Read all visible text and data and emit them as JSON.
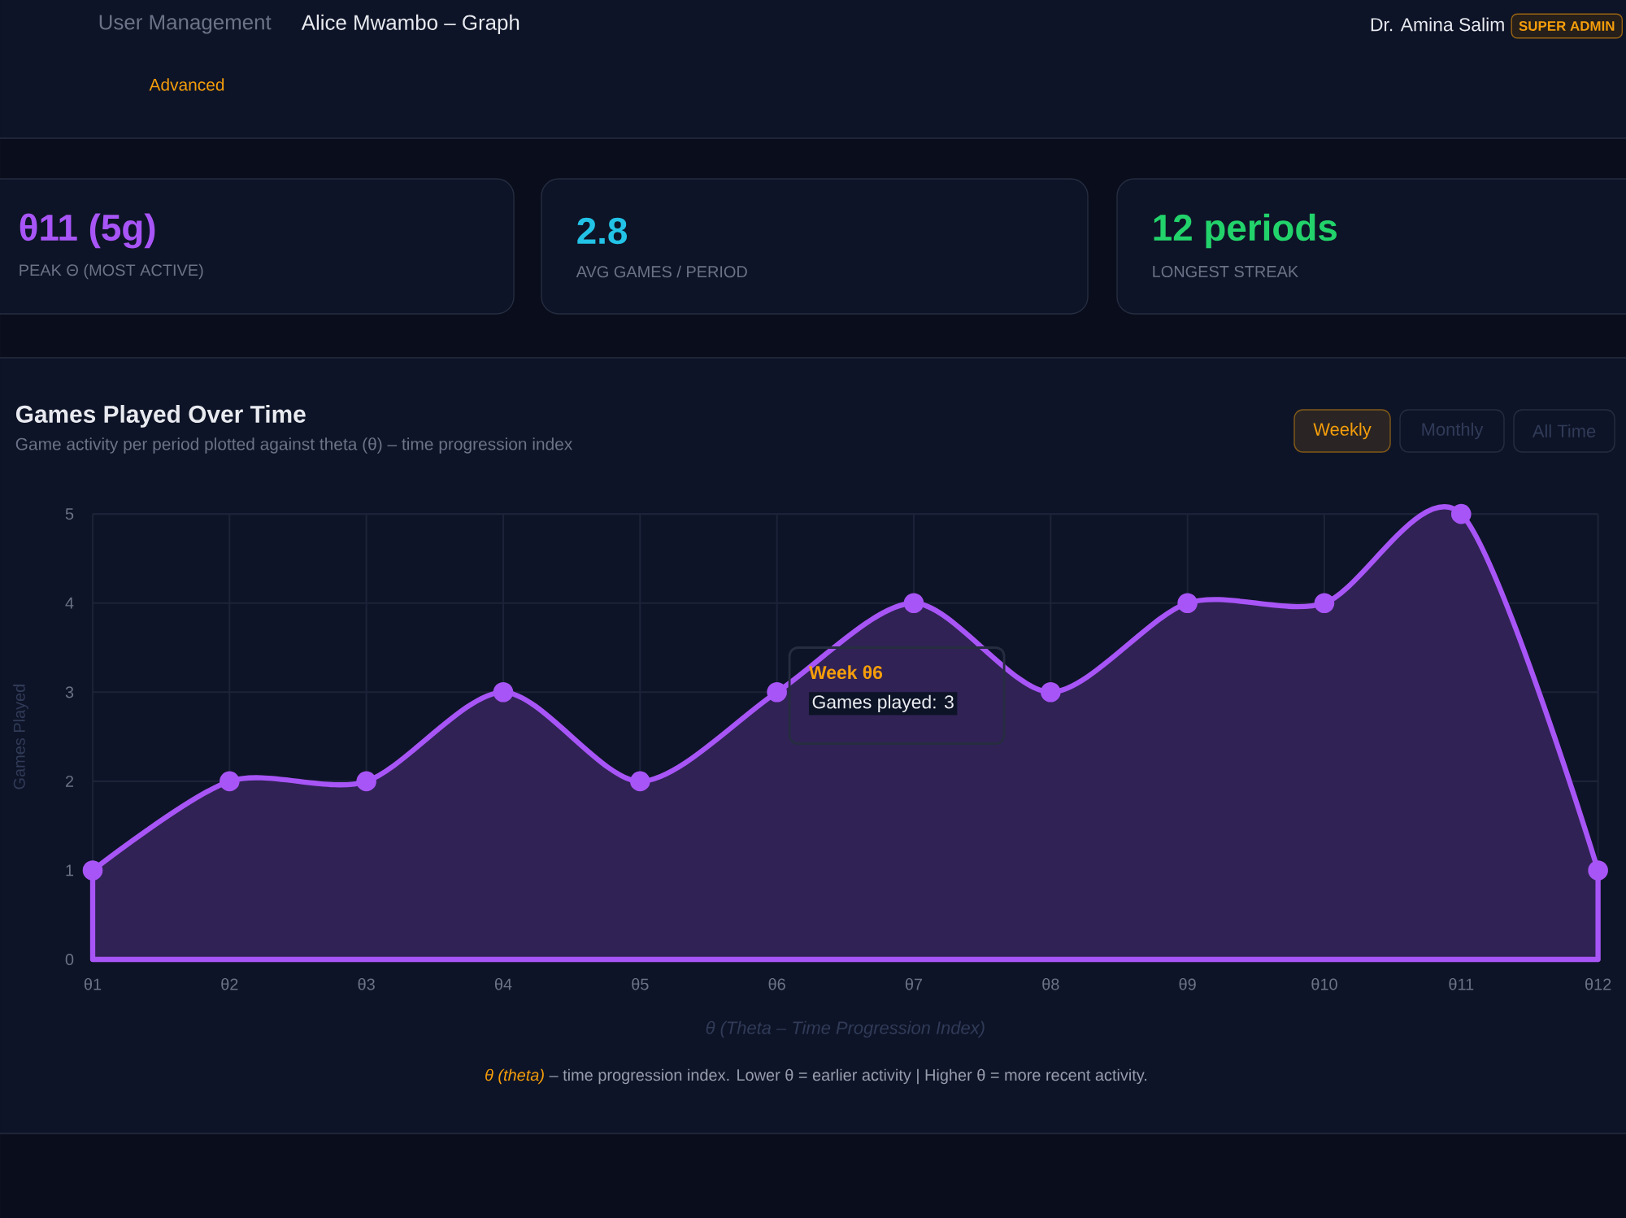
{
  "chart_data": [
    {
      "type": "other",
      "annotations": [
        "User Management",
        "Alice Mwambo – Graph",
        "Dr. Amina Salim",
        "SUPER ADMIN",
        "Advanced",
        "θ11 (5g)",
        "PEAK Θ (MOST ACTIVE)",
        "2.8",
        "AVG GAMES / PERIOD",
        "12 periods",
        "LONGEST STREAK"
      ]
    },
    {
      "type": "area",
      "title": "Games Played Over Time",
      "subtitle": "Game activity per period plotted against theta (θ) – time progression index",
      "xlabel": "θ  (Theta – Time Progression Index)",
      "ylabel": "Games Played",
      "categories": [
        "θ1",
        "θ2",
        "θ3",
        "θ4",
        "θ5",
        "θ6",
        "θ7",
        "θ8",
        "θ9",
        "θ10",
        "θ11",
        "θ12"
      ],
      "values": [
        1,
        2,
        2,
        3,
        2,
        3,
        4,
        3,
        4,
        4,
        5,
        1
      ],
      "color": "#a855f7",
      "ylim": [
        0,
        5
      ],
      "yticks": [
        0,
        1,
        2,
        3,
        4,
        5
      ],
      "grid": true,
      "marker": "circle",
      "annotations": [
        "Weekly",
        "Monthly",
        "All Time",
        {
          "text": "Week θ6",
          "x": "θ6",
          "y": 3
        },
        "Games played: 3",
        "θ (theta)",
        "– time progression index. Lower θ = earlier activity  |  Higher θ = more recent activity."
      ]
    }
  ]
}
